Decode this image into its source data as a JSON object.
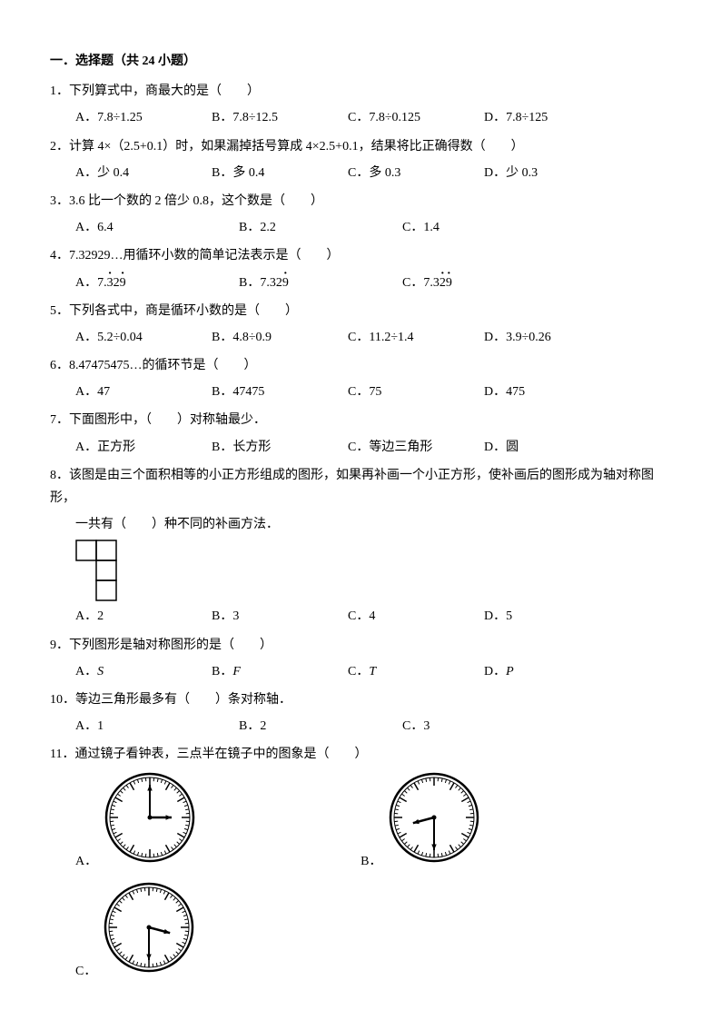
{
  "section_title": "一．选择题（共 24 小题）",
  "q1": {
    "text": "1．下列算式中，商最大的是（　　）",
    "A": "A．7.8÷1.25",
    "B": "B．7.8÷12.5",
    "C": "C．7.8÷0.125",
    "D": "D．7.8÷125"
  },
  "q2": {
    "text": "2．计算 4×（2.5+0.1）时，如果漏掉括号算成 4×2.5+0.1，结果将比正确得数（　　）",
    "A": "A．少 0.4",
    "B": "B．多 0.4",
    "C": "C．多 0.3",
    "D": "D．少 0.3"
  },
  "q3": {
    "text": "3．3.6 比一个数的 2 倍少 0.8，这个数是（　　）",
    "A": "A．6.4",
    "B": "B．2.2",
    "C": "C．1.4"
  },
  "q4": {
    "text": "4．7.32929…用循环小数的简单记法表示是（　　）",
    "A_pre": "A．7.",
    "A_d1": "3",
    "A_mid": "2",
    "A_d2": "9",
    "B_pre": "B．7.32",
    "B_d": "9",
    "C_pre": "C．7.3",
    "C_mid": "2",
    "C_d": "9",
    "C_d1": "2",
    "C_d2": "9"
  },
  "q5": {
    "text": "5．下列各式中，商是循环小数的是（　　）",
    "A": "A．5.2÷0.04",
    "B": "B．4.8÷0.9",
    "C": "C．11.2÷1.4",
    "D": "D．3.9÷0.26"
  },
  "q6": {
    "text": "6．8.47475475…的循环节是（　　）",
    "A": "A．47",
    "B": "B．47475",
    "C": "C．75",
    "D": "D．475"
  },
  "q7": {
    "text": "7．下面图形中，（　　）对称轴最少．",
    "A": "A．正方形",
    "B": "B．长方形",
    "C": "C．等边三角形",
    "D": "D．圆"
  },
  "q8": {
    "text1": "8．该图是由三个面积相等的小正方形组成的图形，如果再补画一个小正方形，使补画后的图形成为轴对称图形，",
    "text2": "一共有（　　）种不同的补画方法．",
    "A": "A．2",
    "B": "B．3",
    "C": "C．4",
    "D": "D．5",
    "shape": {
      "cell": 22,
      "stroke": "#000000",
      "fill": "#ffffff"
    }
  },
  "q9": {
    "text": "9．下列图形是轴对称图形的是（　　）",
    "A": "A．",
    "A_letter": "S",
    "B": "B．",
    "B_letter": "F",
    "C": "C．",
    "C_letter": "T",
    "D": "D．",
    "D_letter": "P"
  },
  "q10": {
    "text": "10．等边三角形最多有（　　）条对称轴．",
    "A": "A．1",
    "B": "B．2",
    "C": "C．3"
  },
  "q11": {
    "text": "11．通过镜子看钟表，三点半在镜子中的图象是（　　）",
    "A": "A．",
    "B": "B．",
    "C": "C．",
    "clock": {
      "radius": 48,
      "stroke": "#000000",
      "tick_len": 6,
      "hour_len": 24,
      "min_len": 36,
      "clocks": {
        "A": {
          "hour_angle": 90,
          "min_angle": 0
        },
        "B": {
          "hour_angle": 255,
          "min_angle": 180
        },
        "C": {
          "hour_angle": 105,
          "min_angle": 180
        }
      }
    }
  }
}
